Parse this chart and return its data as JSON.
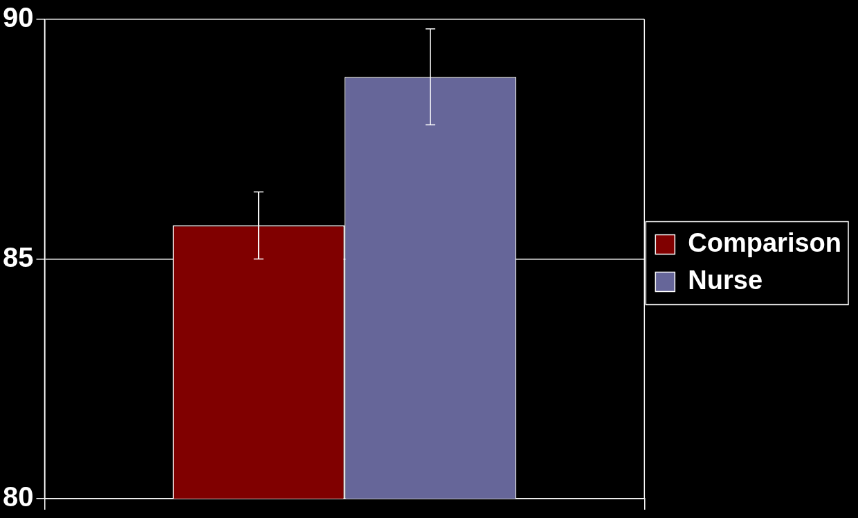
{
  "chart_data": {
    "type": "bar",
    "categories": [
      null
    ],
    "series": [
      {
        "name": "Comparison",
        "color": "#800000",
        "values": [
          85.7
        ],
        "errors": [
          0.7
        ]
      },
      {
        "name": "Nurse",
        "color": "#666699",
        "values": [
          88.8
        ],
        "errors": [
          1.0
        ]
      }
    ],
    "ylim": [
      80,
      90
    ],
    "yticks": [
      80,
      85,
      90
    ],
    "grid": "y",
    "legend": "right",
    "tick_labels": "y"
  }
}
